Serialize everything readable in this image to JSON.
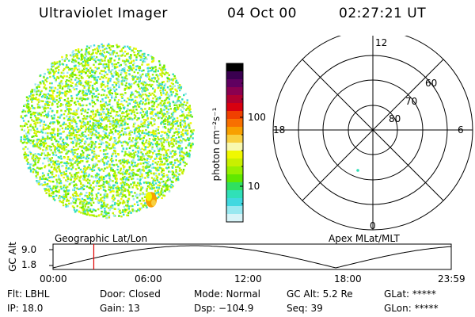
{
  "header": {
    "instrument": "Ultraviolet Imager",
    "date": "04 Oct 00",
    "time": "02:27:21 UT"
  },
  "colorbar": {
    "label": "photon cm⁻²s⁻¹",
    "tick_labels": [
      "100",
      "10"
    ],
    "colors": [
      "#000000",
      "#3a0050",
      "#600060",
      "#8a0050",
      "#b00030",
      "#d80010",
      "#f04000",
      "#f87000",
      "#f8a000",
      "#f8d040",
      "#f8f8b0",
      "#f0f800",
      "#c8f000",
      "#98f000",
      "#60e800",
      "#30e060",
      "#30e0b8",
      "#40d8e0",
      "#98e8f0",
      "#d8f4f8"
    ]
  },
  "polar_plot": {
    "lat_labels": [
      "60",
      "70",
      "80"
    ],
    "mlt_labels": {
      "top": "12",
      "right": "6",
      "bottom": "0",
      "left": "18"
    }
  },
  "timeline": {
    "left_title": "Geographic Lat/Lon",
    "right_title": "Apex MLat/MLT",
    "y_axis_label": "GC Alt",
    "y_ticks": [
      "9.0",
      "1.8"
    ],
    "x_ticks": [
      "00:00",
      "06:00",
      "12:00",
      "18:00",
      "23:59"
    ],
    "marker_time": "02:27",
    "marker_fraction": 0.1023
  },
  "footer": {
    "filter": "Flt: LBHL",
    "ip": "IP: 18.0",
    "door": "Door: Closed",
    "gain": "Gain: 13",
    "mode": "Mode: Normal",
    "dsp": "Dsp: −104.9",
    "gc_alt": "GC Alt: 5.2 Re",
    "seq": "Seq: 39",
    "glat": "GLat: *****",
    "glon": "GLon: *****"
  }
}
